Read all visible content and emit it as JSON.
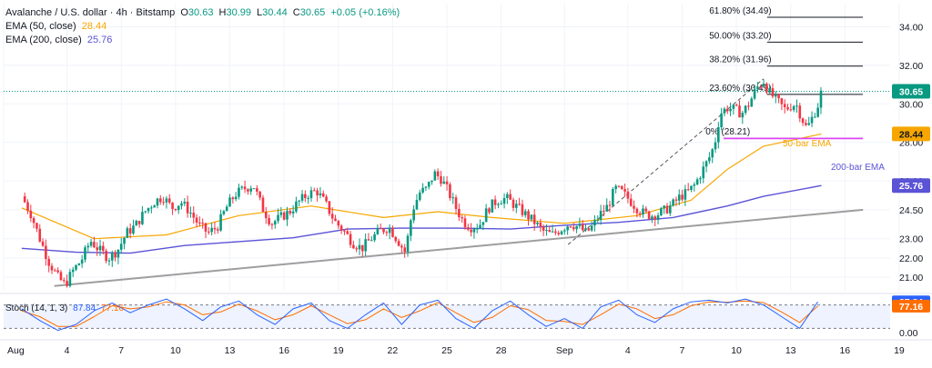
{
  "header": {
    "symbol": "Avalanche / U.S. dollar · 4h · Bitstamp",
    "o_label": "O",
    "o_value": "30.63",
    "h_label": "H",
    "h_value": "30.99",
    "l_label": "L",
    "l_value": "30.44",
    "c_label": "C",
    "c_value": "30.65",
    "change": "+0.05 (+0.16%)",
    "ema50_label": "EMA (50, close)",
    "ema50_value": "28.44",
    "ema200_label": "EMA (200, close)",
    "ema200_value": "25.76"
  },
  "stoch_header": {
    "label": "Stoch (14, 1, 3)",
    "k_value": "87.84",
    "d_value": "77.16"
  },
  "annotations": {
    "ema50_text": "50-bar EMA",
    "ema200_text": "200-bar EMA"
  },
  "colors": {
    "up": "#089981",
    "down": "#f23645",
    "ema50": "#f7a600",
    "ema200": "#5b53d6",
    "stoch_k": "#2962ff",
    "stoch_d": "#ff6d00",
    "trend": "#9e9e9e",
    "support": "#e040fb"
  },
  "chart_data": [
    {
      "type": "candlestick",
      "title": "Avalanche / U.S. dollar · 4h · Bitstamp",
      "ylim": [
        20.3,
        35.2
      ],
      "y_ticks": [
        "21.00",
        "22.00",
        "23.00",
        "24.50",
        "26.00",
        "28.00",
        "30.00",
        "32.00",
        "34.00"
      ],
      "x_ticks": [
        "Aug",
        "4",
        "7",
        "10",
        "13",
        "16",
        "19",
        "22",
        "25",
        "28",
        "Sep",
        "4",
        "7",
        "10",
        "13",
        "16",
        "19"
      ],
      "close_path": [
        [
          1,
          25.2
        ],
        [
          1.5,
          24.3
        ],
        [
          2,
          23.0
        ],
        [
          2.5,
          21.8
        ],
        [
          3.0,
          21.0
        ],
        [
          3.4,
          20.6
        ],
        [
          3.8,
          21.3
        ],
        [
          4.3,
          21.9
        ],
        [
          4.8,
          22.9
        ],
        [
          5.3,
          22.4
        ],
        [
          5.8,
          22.0
        ],
        [
          6.3,
          22.4
        ],
        [
          6.8,
          23.3
        ],
        [
          7.3,
          23.7
        ],
        [
          7.8,
          24.4
        ],
        [
          8.3,
          24.9
        ],
        [
          8.8,
          25.2
        ],
        [
          9.3,
          24.6
        ],
        [
          9.8,
          24.9
        ],
        [
          10.3,
          24.4
        ],
        [
          10.8,
          23.7
        ],
        [
          11.3,
          23.3
        ],
        [
          11.8,
          23.6
        ],
        [
          12.3,
          24.6
        ],
        [
          12.8,
          25.3
        ],
        [
          13.3,
          25.6
        ],
        [
          13.8,
          25.8
        ],
        [
          14.3,
          24.6
        ],
        [
          14.8,
          23.8
        ],
        [
          15.3,
          24.1
        ],
        [
          15.8,
          24.4
        ],
        [
          16.3,
          24.9
        ],
        [
          16.8,
          25.3
        ],
        [
          17.3,
          25.5
        ],
        [
          17.8,
          24.8
        ],
        [
          18.3,
          23.9
        ],
        [
          18.8,
          23.4
        ],
        [
          19.3,
          22.8
        ],
        [
          19.8,
          22.5
        ],
        [
          20.3,
          23.0
        ],
        [
          20.8,
          23.4
        ],
        [
          21.3,
          23.6
        ],
        [
          21.8,
          22.9
        ],
        [
          22.2,
          22.3
        ],
        [
          22.6,
          24.5
        ],
        [
          23.0,
          25.4
        ],
        [
          23.4,
          25.6
        ],
        [
          23.8,
          26.4
        ],
        [
          24.2,
          26.1
        ],
        [
          24.6,
          25.4
        ],
        [
          25.0,
          24.6
        ],
        [
          25.4,
          23.9
        ],
        [
          25.8,
          23.6
        ],
        [
          26.3,
          23.7
        ],
        [
          26.8,
          24.6
        ],
        [
          27.3,
          25.0
        ],
        [
          27.8,
          25.1
        ],
        [
          28.3,
          24.7
        ],
        [
          28.8,
          24.3
        ],
        [
          29.3,
          23.9
        ],
        [
          29.8,
          23.4
        ],
        [
          30.3,
          23.2
        ],
        [
          30.8,
          23.5
        ],
        [
          31.3,
          23.8
        ],
        [
          31.8,
          23.6
        ],
        [
          32.2,
          23.3
        ],
        [
          32.6,
          23.7
        ],
        [
          33.0,
          24.3
        ],
        [
          33.4,
          24.7
        ],
        [
          33.8,
          25.6
        ],
        [
          34.2,
          25.4
        ],
        [
          34.6,
          25.0
        ],
        [
          35.0,
          24.6
        ],
        [
          35.4,
          24.3
        ],
        [
          35.8,
          24.2
        ],
        [
          36.2,
          24.3
        ],
        [
          36.6,
          24.5
        ],
        [
          37.0,
          24.8
        ],
        [
          37.4,
          25.2
        ],
        [
          37.8,
          25.4
        ],
        [
          38.2,
          25.8
        ],
        [
          38.6,
          26.5
        ],
        [
          39.0,
          27.2
        ],
        [
          39.3,
          27.9
        ],
        [
          39.6,
          29.5
        ],
        [
          40.0,
          29.8
        ],
        [
          40.4,
          29.7
        ],
        [
          40.8,
          29.5
        ],
        [
          41.2,
          30.0
        ],
        [
          41.6,
          30.8
        ],
        [
          42.0,
          31.2
        ],
        [
          42.3,
          30.6
        ],
        [
          42.6,
          30.3
        ],
        [
          42.9,
          30.0
        ],
        [
          43.2,
          29.7
        ],
        [
          43.5,
          29.9
        ],
        [
          43.8,
          30.0
        ],
        [
          44.1,
          29.3
        ],
        [
          44.4,
          28.7
        ],
        [
          44.7,
          29.3
        ],
        [
          45.0,
          29.9
        ],
        [
          45.2,
          30.65
        ]
      ],
      "ema50": [
        [
          1,
          24.6
        ],
        [
          5,
          23.0
        ],
        [
          9,
          23.2
        ],
        [
          13,
          24.2
        ],
        [
          17,
          24.7
        ],
        [
          21,
          24.1
        ],
        [
          24,
          24.4
        ],
        [
          27,
          24.1
        ],
        [
          31,
          23.8
        ],
        [
          35,
          24.2
        ],
        [
          38,
          25.0
        ],
        [
          40,
          26.6
        ],
        [
          42,
          27.8
        ],
        [
          45.2,
          28.44
        ]
      ],
      "ema200": [
        [
          1,
          22.5
        ],
        [
          4,
          22.3
        ],
        [
          7,
          22.25
        ],
        [
          10,
          22.65
        ],
        [
          13,
          22.85
        ],
        [
          16,
          23.05
        ],
        [
          19,
          23.5
        ],
        [
          22,
          23.55
        ],
        [
          25,
          23.55
        ],
        [
          28,
          23.5
        ],
        [
          31,
          23.7
        ],
        [
          34,
          23.85
        ],
        [
          37,
          24.1
        ],
        [
          40,
          24.7
        ],
        [
          42,
          25.2
        ],
        [
          45.2,
          25.76
        ]
      ],
      "trendline": [
        [
          2.8,
          20.55
        ],
        [
          47.5,
          24.5
        ]
      ],
      "support_line": [
        [
          39.8,
          28.2
        ],
        [
          47.5,
          28.2
        ]
      ],
      "fib_line": [
        [
          31.2,
          22.7
        ],
        [
          42.0,
          31.3
        ]
      ],
      "fib_levels": [
        {
          "label": "61.80% (34.49)",
          "value": 34.49
        },
        {
          "label": "50.00% (33.20)",
          "value": 33.2
        },
        {
          "label": "38.20% (31.96)",
          "value": 31.96
        },
        {
          "label": "23.60% (30.49)",
          "value": 30.49
        },
        {
          "label": "0% (28.21)",
          "value": 28.21
        }
      ],
      "price_markers": [
        {
          "value": 30.65,
          "label": "30.65",
          "color": "#089981",
          "text_color": "#ffffff"
        },
        {
          "value": 28.44,
          "label": "28.44",
          "color": "#f7a600",
          "text_color": "#131722"
        },
        {
          "value": 25.76,
          "label": "25.76",
          "color": "#5b53d6",
          "text_color": "#ffffff"
        }
      ]
    },
    {
      "type": "line",
      "title": "Stoch (14, 1, 3)",
      "ylim": [
        0,
        100
      ],
      "y_ticks": [
        "0.00"
      ],
      "bands": [
        20,
        80
      ],
      "k_line": [
        [
          1,
          70
        ],
        [
          2,
          40
        ],
        [
          3,
          15
        ],
        [
          4,
          30
        ],
        [
          5,
          65
        ],
        [
          6,
          85
        ],
        [
          7,
          60
        ],
        [
          8,
          80
        ],
        [
          9,
          95
        ],
        [
          10,
          70
        ],
        [
          11,
          40
        ],
        [
          12,
          75
        ],
        [
          13,
          90
        ],
        [
          14,
          55
        ],
        [
          15,
          30
        ],
        [
          16,
          70
        ],
        [
          17,
          85
        ],
        [
          18,
          40
        ],
        [
          19,
          20
        ],
        [
          20,
          55
        ],
        [
          21,
          85
        ],
        [
          22,
          30
        ],
        [
          23,
          80
        ],
        [
          24,
          92
        ],
        [
          25,
          45
        ],
        [
          26,
          20
        ],
        [
          27,
          65
        ],
        [
          28,
          90
        ],
        [
          29,
          55
        ],
        [
          30,
          25
        ],
        [
          31,
          45
        ],
        [
          32,
          20
        ],
        [
          33,
          75
        ],
        [
          34,
          92
        ],
        [
          35,
          55
        ],
        [
          36,
          35
        ],
        [
          37,
          70
        ],
        [
          38,
          88
        ],
        [
          39,
          92
        ],
        [
          40,
          85
        ],
        [
          41,
          95
        ],
        [
          42,
          80
        ],
        [
          43,
          50
        ],
        [
          44,
          20
        ],
        [
          45,
          88
        ]
      ],
      "d_line": [
        [
          1,
          65
        ],
        [
          2,
          50
        ],
        [
          3,
          25
        ],
        [
          4,
          25
        ],
        [
          5,
          50
        ],
        [
          6,
          78
        ],
        [
          7,
          70
        ],
        [
          8,
          75
        ],
        [
          9,
          88
        ],
        [
          10,
          80
        ],
        [
          11,
          55
        ],
        [
          12,
          62
        ],
        [
          13,
          82
        ],
        [
          14,
          65
        ],
        [
          15,
          42
        ],
        [
          16,
          55
        ],
        [
          17,
          78
        ],
        [
          18,
          55
        ],
        [
          19,
          32
        ],
        [
          20,
          42
        ],
        [
          21,
          70
        ],
        [
          22,
          48
        ],
        [
          23,
          65
        ],
        [
          24,
          86
        ],
        [
          25,
          60
        ],
        [
          26,
          35
        ],
        [
          27,
          48
        ],
        [
          28,
          78
        ],
        [
          29,
          68
        ],
        [
          30,
          40
        ],
        [
          31,
          38
        ],
        [
          32,
          30
        ],
        [
          33,
          55
        ],
        [
          34,
          82
        ],
        [
          35,
          70
        ],
        [
          36,
          45
        ],
        [
          37,
          55
        ],
        [
          38,
          78
        ],
        [
          39,
          88
        ],
        [
          40,
          87
        ],
        [
          41,
          90
        ],
        [
          42,
          86
        ],
        [
          43,
          62
        ],
        [
          44,
          35
        ],
        [
          45,
          77
        ]
      ],
      "value_markers": [
        {
          "value": 87.84,
          "label": "87.84",
          "color": "#2962ff"
        },
        {
          "value": 77.16,
          "label": "77.16",
          "color": "#ff6d00"
        }
      ]
    }
  ]
}
